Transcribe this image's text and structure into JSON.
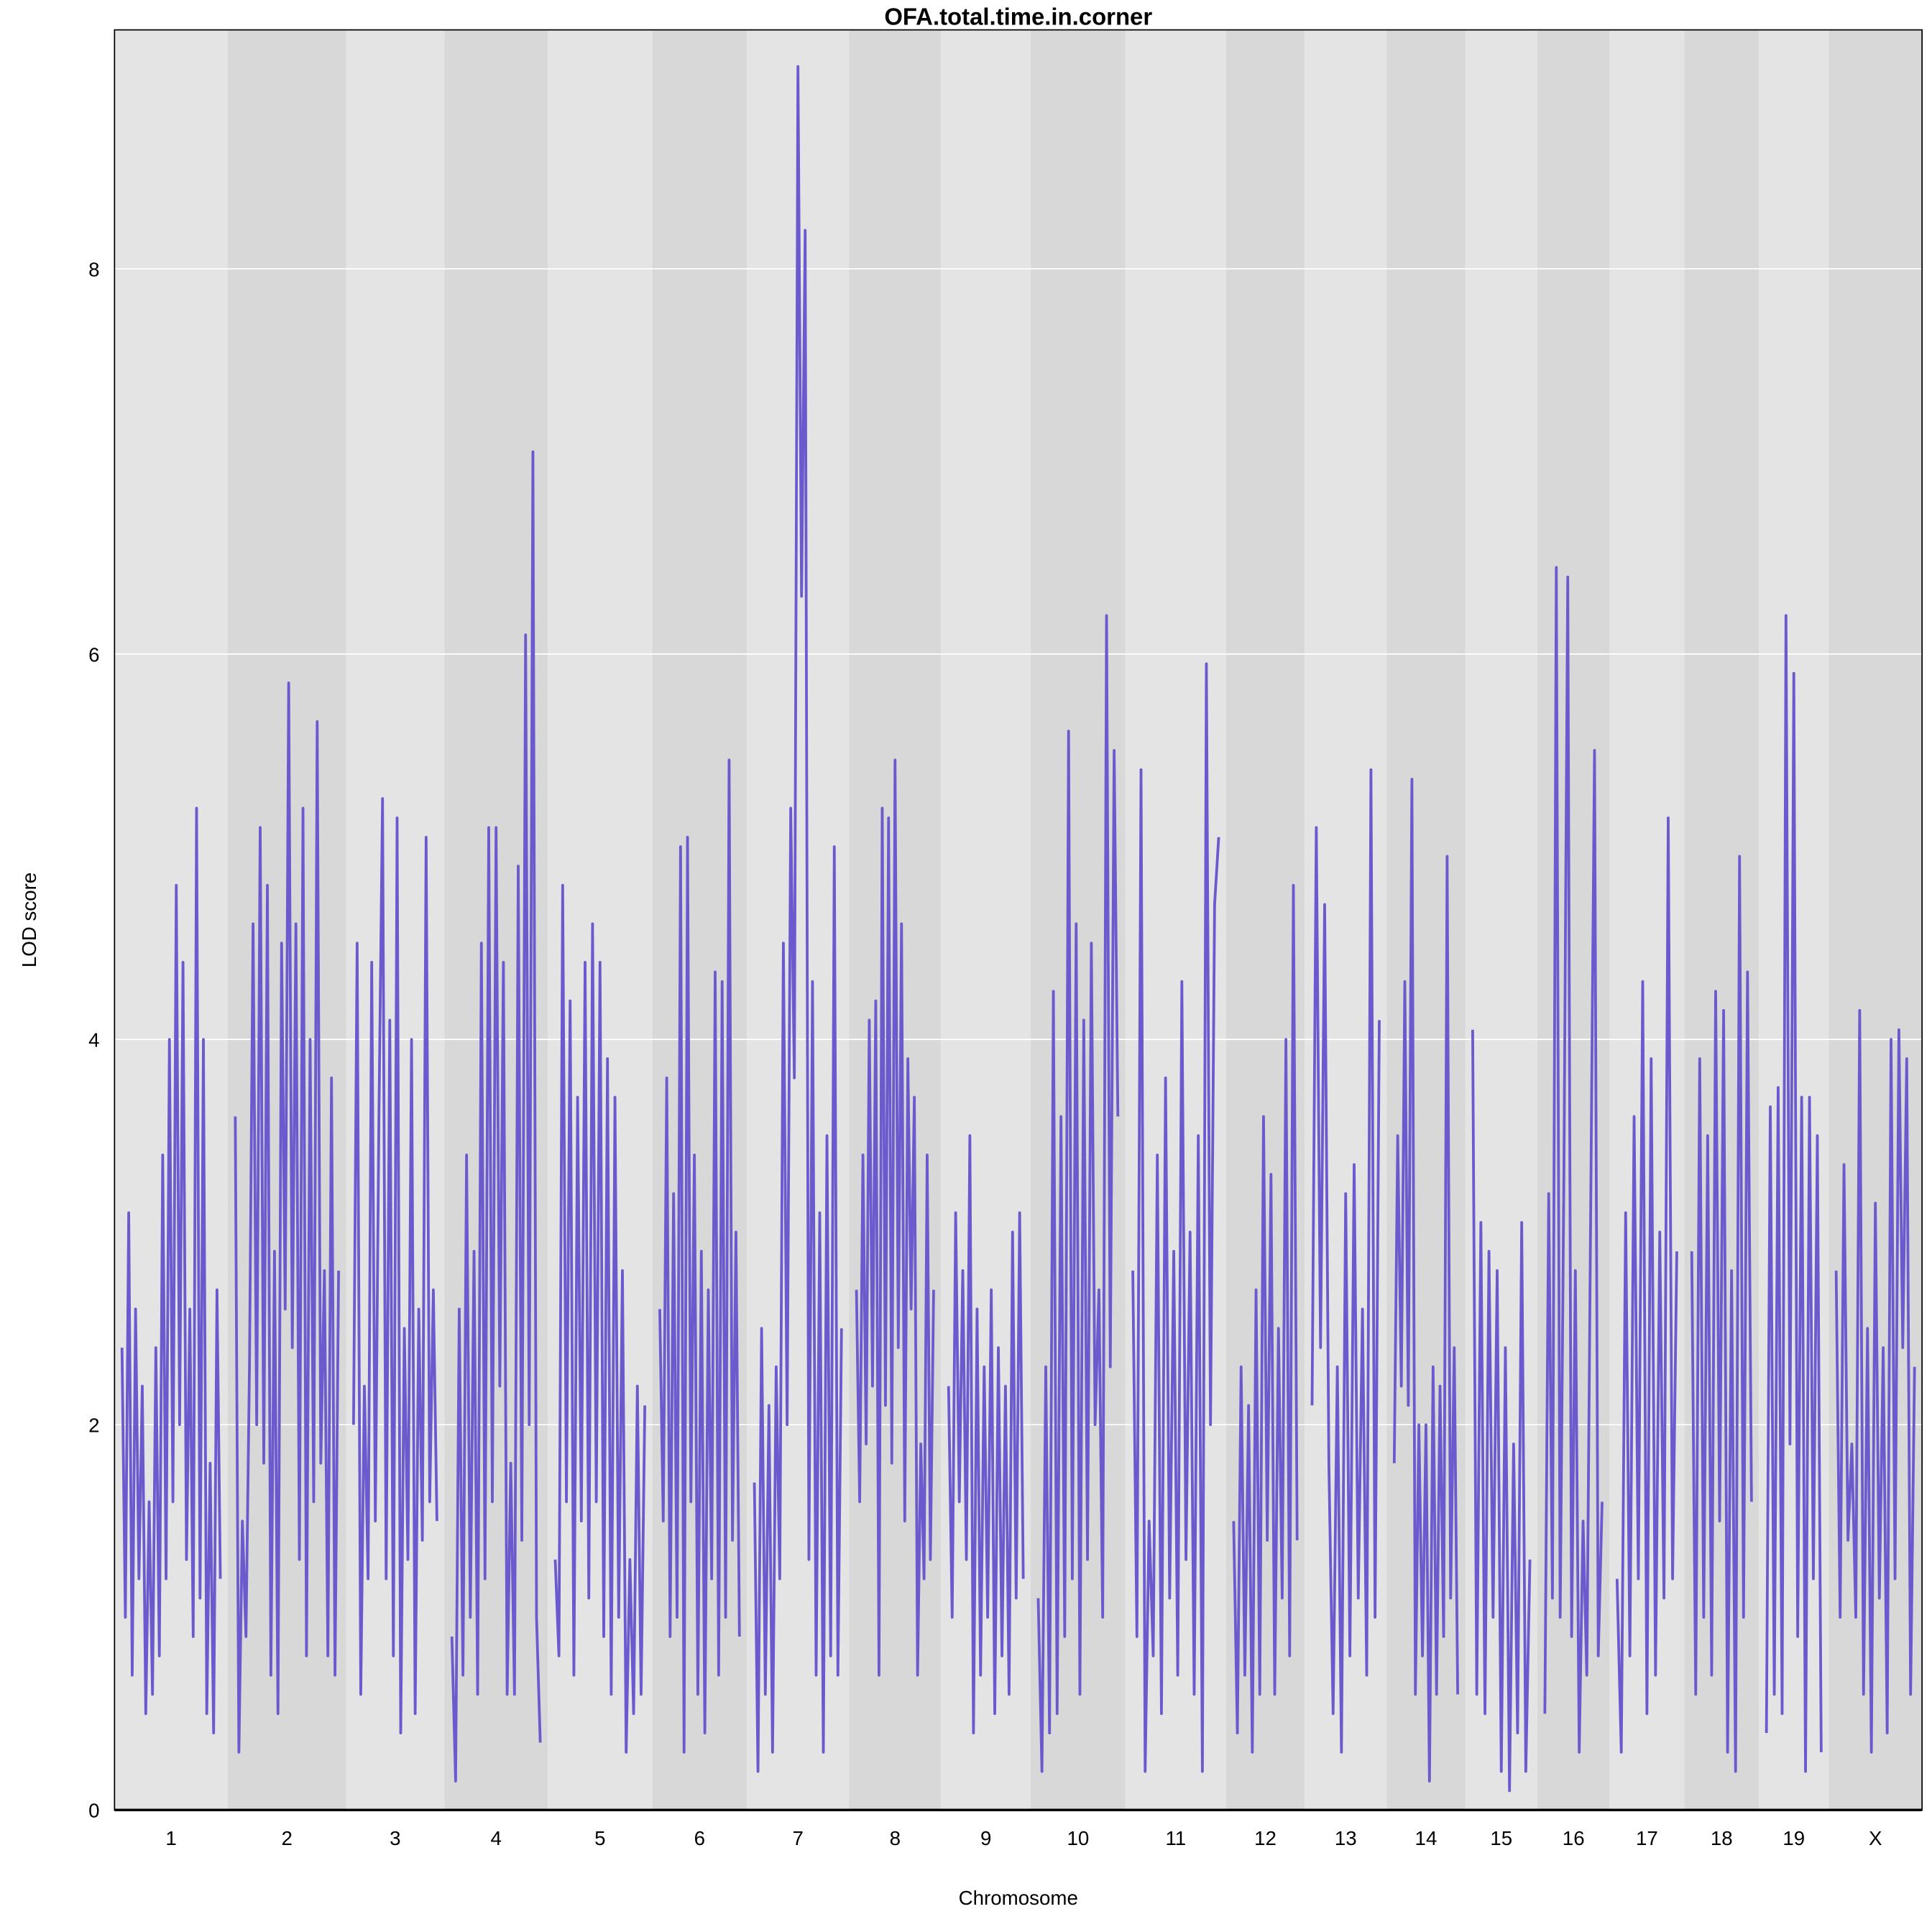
{
  "chart_data": {
    "type": "line",
    "title": "OFA.total.time.in.corner",
    "xlabel": "Chromosome",
    "ylabel": "LOD score",
    "ylim": [
      0,
      9.24
    ],
    "yticks": [
      0,
      2,
      4,
      6,
      8
    ],
    "grid": true,
    "line_color": "#6A5ACD",
    "band_colors": [
      "#E4E4E4",
      "#D8D8D8"
    ],
    "chromosomes": [
      {
        "label": "1",
        "lod": [
          2.4,
          1.0,
          3.1,
          0.7,
          2.6,
          1.2,
          2.2,
          0.5,
          1.6,
          0.6,
          2.4,
          0.8,
          3.4,
          1.2,
          4.0,
          1.6,
          4.8,
          2.0,
          4.4,
          1.3,
          2.6,
          0.9,
          5.2,
          1.1,
          4.0,
          0.5,
          1.8,
          0.4,
          2.7,
          1.2
        ]
      },
      {
        "label": "2",
        "lod": [
          3.6,
          0.3,
          1.5,
          0.9,
          2.3,
          4.6,
          2.0,
          5.1,
          1.8,
          4.8,
          0.7,
          2.9,
          0.5,
          4.5,
          2.6,
          5.85,
          2.4,
          4.6,
          1.3,
          5.2,
          0.8,
          4.0,
          1.6,
          5.65,
          1.8,
          2.8,
          0.8,
          3.8,
          0.7,
          2.8
        ]
      },
      {
        "label": "3",
        "lod": [
          2.0,
          4.5,
          0.6,
          2.2,
          1.2,
          4.4,
          1.5,
          3.6,
          5.25,
          1.2,
          4.1,
          0.8,
          5.15,
          0.4,
          2.5,
          1.3,
          4.0,
          0.5,
          2.6,
          1.4,
          5.05,
          1.6,
          2.7,
          1.5
        ]
      },
      {
        "label": "4",
        "lod": [
          0.9,
          0.15,
          2.6,
          0.7,
          3.4,
          1.0,
          2.9,
          0.6,
          4.5,
          1.2,
          5.1,
          1.6,
          5.1,
          2.2,
          4.4,
          0.6,
          1.8,
          0.6,
          4.9,
          1.4,
          6.1,
          2.0,
          7.05,
          1.0,
          0.35
        ]
      },
      {
        "label": "5",
        "lod": [
          1.3,
          0.8,
          4.8,
          1.6,
          4.2,
          0.7,
          3.7,
          1.5,
          4.4,
          1.1,
          4.6,
          1.6,
          4.4,
          0.9,
          3.9,
          0.6,
          3.7,
          1.0,
          2.8,
          0.3,
          1.3,
          0.5,
          2.2,
          0.6,
          2.1
        ]
      },
      {
        "label": "6",
        "lod": [
          2.6,
          1.5,
          3.8,
          0.9,
          3.2,
          1.0,
          5.0,
          0.3,
          5.05,
          1.6,
          3.4,
          0.6,
          2.9,
          0.4,
          2.7,
          1.2,
          4.35,
          0.7,
          4.3,
          1.0,
          5.45,
          1.4,
          3.0,
          0.9
        ]
      },
      {
        "label": "7",
        "lod": [
          1.7,
          0.2,
          2.5,
          0.6,
          2.1,
          0.3,
          2.3,
          1.2,
          4.5,
          2.0,
          5.2,
          3.8,
          9.05,
          6.3,
          8.2,
          1.3,
          4.3,
          0.7,
          3.1,
          0.3,
          3.5,
          0.8,
          5.0,
          0.7,
          2.5
        ]
      },
      {
        "label": "8",
        "lod": [
          2.7,
          1.6,
          3.4,
          1.9,
          4.1,
          2.2,
          4.2,
          0.7,
          5.2,
          2.1,
          5.15,
          1.8,
          5.45,
          2.4,
          4.6,
          1.5,
          3.9,
          2.6,
          3.7,
          0.7,
          1.9,
          1.2,
          3.4,
          1.3,
          2.7
        ]
      },
      {
        "label": "9",
        "lod": [
          2.2,
          1.0,
          3.1,
          1.6,
          2.8,
          1.3,
          3.5,
          0.4,
          2.6,
          0.7,
          2.3,
          1.0,
          2.7,
          0.5,
          2.4,
          0.8,
          2.2,
          0.6,
          3.0,
          1.1,
          3.1,
          1.2
        ]
      },
      {
        "label": "10",
        "lod": [
          1.1,
          0.2,
          2.3,
          0.4,
          4.25,
          0.5,
          3.6,
          0.9,
          5.6,
          1.2,
          4.6,
          0.6,
          4.1,
          1.3,
          4.5,
          2.0,
          2.7,
          1.0,
          6.2,
          2.3,
          5.5,
          3.6
        ]
      },
      {
        "label": "11",
        "lod": [
          2.8,
          0.9,
          5.4,
          0.2,
          1.5,
          0.8,
          3.4,
          0.5,
          3.8,
          1.1,
          2.9,
          0.7,
          4.3,
          1.3,
          3.0,
          0.6,
          3.5,
          0.2,
          5.95,
          2.0,
          4.7,
          5.05
        ]
      },
      {
        "label": "12",
        "lod": [
          1.5,
          0.4,
          2.3,
          0.7,
          2.1,
          0.3,
          2.7,
          0.6,
          3.6,
          1.4,
          3.3,
          0.6,
          2.5,
          1.1,
          4.0,
          0.8,
          4.8,
          1.4
        ]
      },
      {
        "label": "13",
        "lod": [
          2.1,
          5.1,
          2.4,
          4.7,
          1.8,
          0.5,
          2.3,
          0.3,
          3.2,
          0.8,
          3.35,
          1.1,
          2.6,
          0.7,
          5.4,
          1.0,
          4.1
        ]
      },
      {
        "label": "14",
        "lod": [
          1.8,
          3.5,
          2.2,
          4.3,
          2.1,
          5.35,
          0.6,
          2.0,
          0.8,
          2.0,
          0.15,
          2.3,
          0.6,
          2.2,
          0.9,
          4.95,
          1.1,
          2.4,
          0.6
        ]
      },
      {
        "label": "15",
        "lod": [
          4.05,
          0.6,
          3.05,
          0.5,
          2.9,
          1.0,
          2.8,
          0.2,
          2.4,
          0.1,
          1.9,
          0.4,
          3.05,
          0.2,
          1.3
        ]
      },
      {
        "label": "16",
        "lod": [
          0.5,
          3.2,
          1.1,
          6.45,
          1.0,
          3.3,
          6.4,
          0.9,
          2.8,
          0.3,
          1.5,
          0.7,
          3.1,
          5.5,
          0.8,
          1.6
        ]
      },
      {
        "label": "17",
        "lod": [
          1.2,
          0.3,
          3.1,
          0.8,
          3.6,
          1.2,
          4.3,
          0.5,
          3.9,
          0.7,
          3.0,
          1.1,
          5.15,
          1.2,
          2.9
        ]
      },
      {
        "label": "18",
        "lod": [
          2.9,
          0.6,
          3.9,
          1.0,
          3.5,
          0.7,
          4.25,
          1.5,
          4.15,
          0.3,
          2.8,
          0.2,
          4.95,
          1.0,
          4.35,
          1.6
        ]
      },
      {
        "label": "19",
        "lod": [
          0.4,
          3.65,
          0.6,
          3.75,
          0.5,
          6.2,
          1.9,
          5.9,
          0.9,
          3.7,
          0.2,
          3.7,
          1.2,
          3.5,
          0.3
        ]
      },
      {
        "label": "X",
        "lod": [
          2.8,
          1.0,
          3.35,
          1.4,
          1.9,
          1.0,
          4.15,
          0.6,
          2.5,
          0.3,
          3.15,
          1.1,
          2.4,
          0.4,
          4.0,
          1.2,
          4.05,
          2.4,
          3.9,
          0.6,
          2.3
        ]
      }
    ]
  }
}
